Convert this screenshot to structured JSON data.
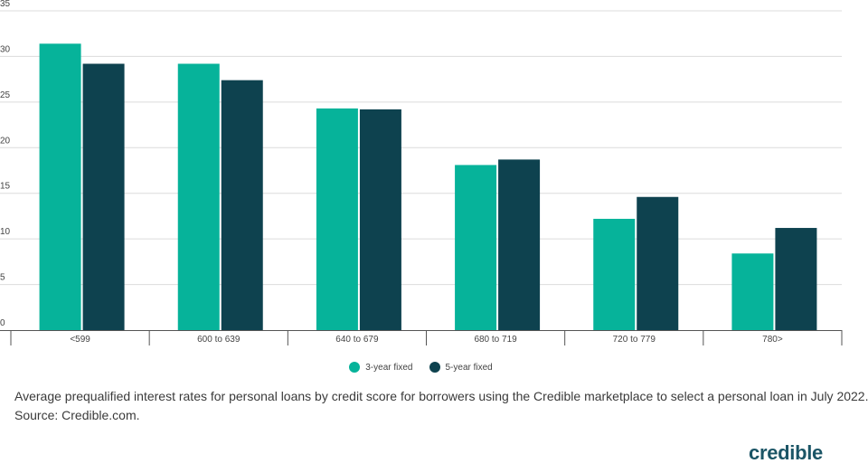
{
  "chart_data": {
    "type": "bar",
    "categories": [
      "<599",
      "600 to 639",
      "640 to 679",
      "680 to 719",
      "720 to 779",
      "780>"
    ],
    "series": [
      {
        "name": "3-year fixed",
        "color": "#06b39a",
        "values": [
          31.4,
          29.2,
          24.3,
          18.1,
          12.2,
          8.4
        ]
      },
      {
        "name": "5-year fixed",
        "color": "#0e424f",
        "values": [
          29.2,
          27.4,
          24.2,
          18.7,
          14.6,
          11.2
        ]
      }
    ],
    "yticks": [
      0,
      5,
      10,
      15,
      20,
      25,
      30,
      35
    ],
    "ylim": [
      0,
      35
    ],
    "grid": true,
    "legend_position": "bottom-center"
  },
  "caption": {
    "line1": "Average prequalified interest rates for personal loans by credit score for borrowers using the Credible marketplace to select a personal loan in July 2022.",
    "line2": "Source: Credible.com."
  },
  "logo": "credible"
}
